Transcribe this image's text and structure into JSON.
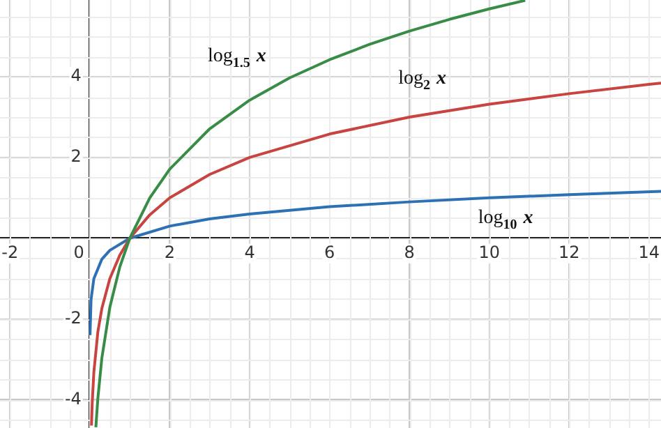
{
  "chart_data": {
    "type": "line",
    "xlim": [
      -2.25,
      14.3
    ],
    "ylim": [
      -4.7,
      5.9
    ],
    "xticks": [
      -2,
      0,
      2,
      4,
      6,
      8,
      10,
      12,
      14
    ],
    "yticks": [
      -4,
      -2,
      {
        "value": 0,
        "label": null
      },
      2,
      4
    ],
    "grid": true,
    "series": [
      {
        "name": "log$_{1.5}$ x",
        "color": "#388c46",
        "x": [
          0.15,
          0.2,
          0.3,
          0.5,
          0.75,
          1,
          1.5,
          2,
          3,
          4,
          5,
          6,
          7,
          8,
          9,
          10,
          10.9
        ],
        "values": [
          -4.68,
          -3.97,
          -2.97,
          -1.71,
          -0.71,
          0,
          1,
          1.71,
          2.71,
          3.42,
          3.97,
          4.42,
          4.8,
          5.13,
          5.42,
          5.68,
          5.89
        ]
      },
      {
        "name": "log$_{2}$ x",
        "color": "#c74440",
        "x": [
          0.04,
          0.06,
          0.1,
          0.2,
          0.3,
          0.5,
          0.75,
          1,
          1.5,
          2,
          3,
          4,
          6,
          8,
          10,
          12,
          14,
          14.3
        ],
        "values": [
          -4.64,
          -4.06,
          -3.32,
          -2.32,
          -1.74,
          -1,
          -0.42,
          0,
          0.58,
          1,
          1.58,
          2,
          2.58,
          3,
          3.32,
          3.58,
          3.81,
          3.84
        ]
      },
      {
        "name": "log$_{10}$ x",
        "color": "#2d70b3",
        "x": [
          0.004,
          0.03,
          0.1,
          0.3,
          0.5,
          1,
          2,
          3,
          4,
          6,
          8,
          10,
          12,
          14.3
        ],
        "values": [
          -2.4,
          -1.52,
          -1,
          -0.52,
          -0.3,
          0,
          0.3,
          0.48,
          0.6,
          0.78,
          0.9,
          1,
          1.08,
          1.16
        ]
      }
    ]
  }
}
